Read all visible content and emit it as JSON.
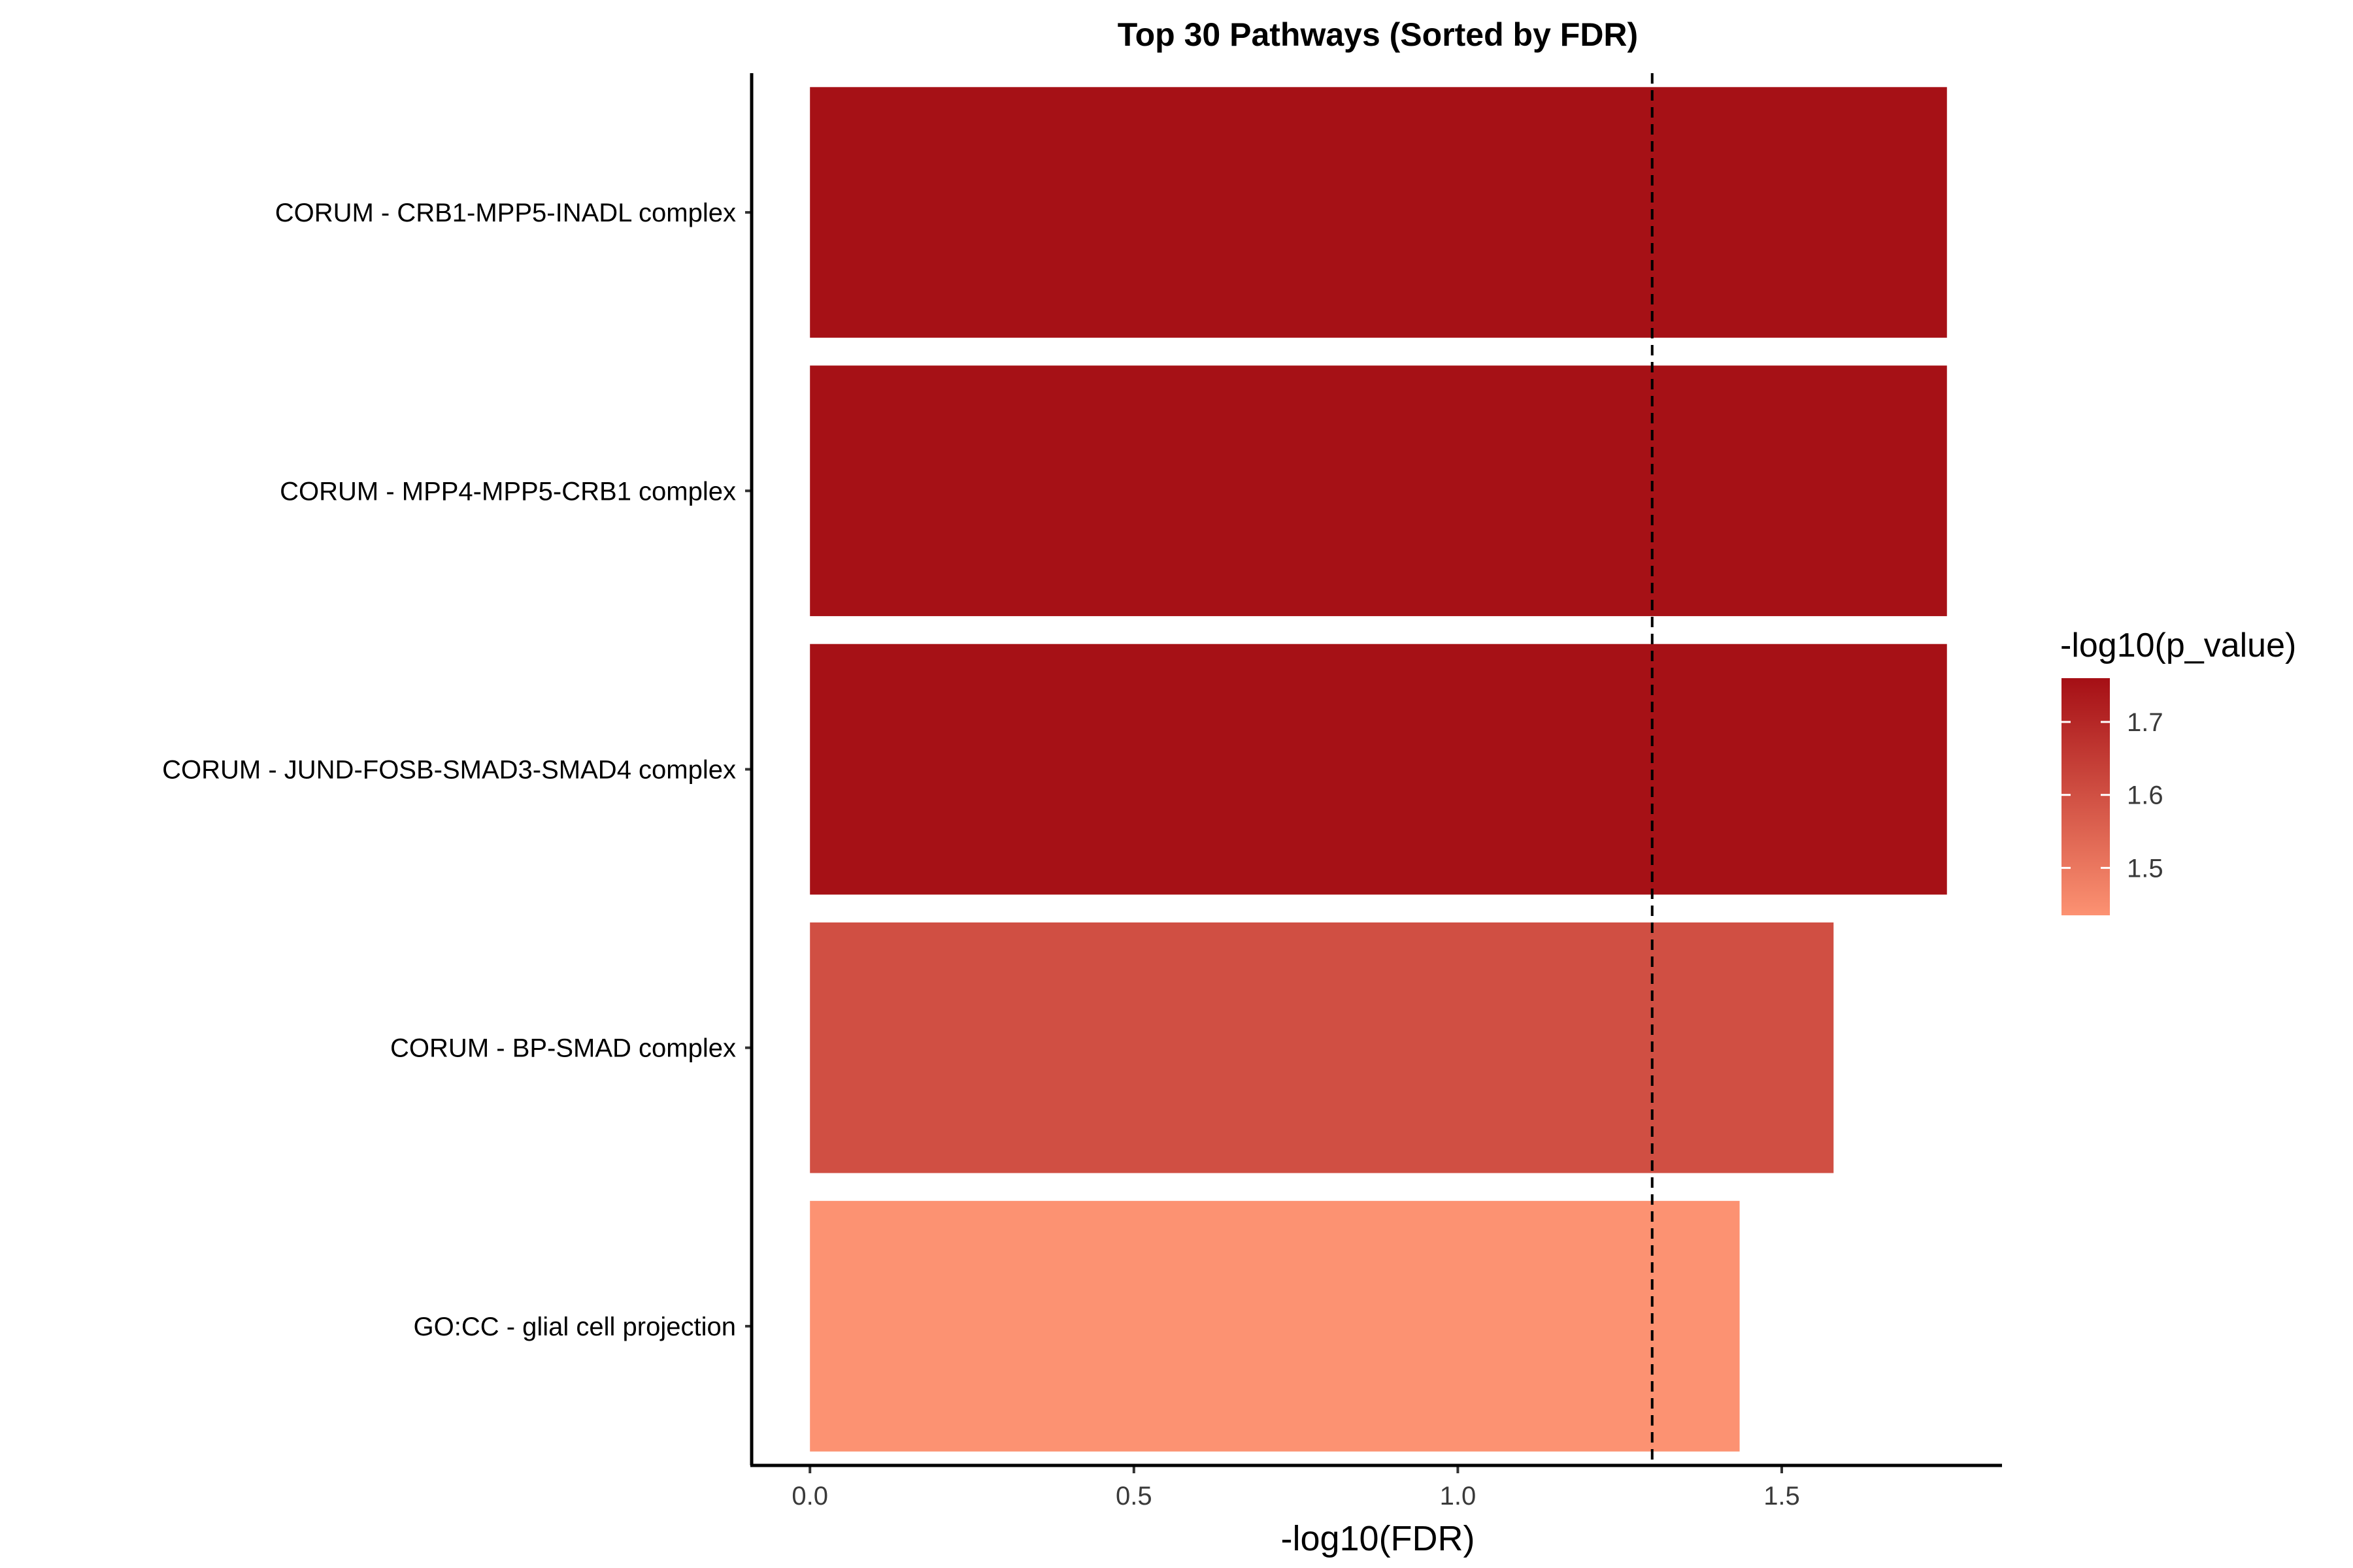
{
  "chart_data": {
    "type": "bar",
    "orientation": "horizontal",
    "title": "Top 30 Pathways (Sorted by FDR)",
    "xlabel": "-log10(FDR)",
    "ylabel": "",
    "xlim": [
      -0.09,
      1.84
    ],
    "xticks": [
      0.0,
      0.5,
      1.0,
      1.5
    ],
    "xtick_labels": [
      "0.0",
      "0.5",
      "1.0",
      "1.5"
    ],
    "threshold_line": 1.3,
    "grid": false,
    "categories": [
      "CORUM - CRB1-MPP5-INADL complex",
      "CORUM - MPP4-MPP5-CRB1 complex",
      "CORUM - JUND-FOSB-SMAD3-SMAD4 complex",
      "CORUM - BP-SMAD complex",
      "GO:CC - glial cell projection"
    ],
    "values": [
      1.755,
      1.755,
      1.755,
      1.58,
      1.435
    ],
    "color_values": [
      1.755,
      1.755,
      1.755,
      1.6,
      1.435
    ],
    "legend": {
      "title": "-log10(p_value)",
      "placement": "right",
      "range": [
        1.435,
        1.76
      ],
      "ticks": [
        1.5,
        1.6,
        1.7
      ],
      "tick_labels": [
        "1.5",
        "1.6",
        "1.7"
      ],
      "low_color": "#fc9272",
      "high_color": "#a50f15"
    }
  }
}
